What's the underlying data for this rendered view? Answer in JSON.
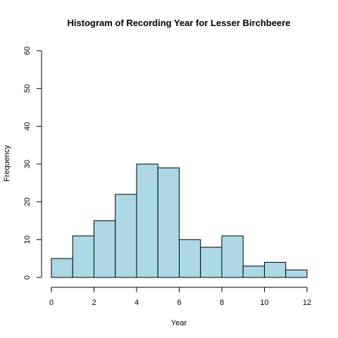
{
  "chart_data": {
    "type": "bar",
    "title": "Histogram of Recording Year for Lesser Birchbeere",
    "xlabel": "Year",
    "ylabel": "Frequency",
    "bin_edges": [
      0,
      1,
      2,
      3,
      4,
      5,
      6,
      7,
      8,
      9,
      10,
      11,
      12
    ],
    "values": [
      5,
      11,
      15,
      22,
      30,
      29,
      10,
      8,
      11,
      3,
      4,
      2
    ],
    "xlim": [
      0,
      12
    ],
    "ylim": [
      0,
      60
    ],
    "x_ticks": [
      0,
      2,
      4,
      6,
      8,
      10,
      12
    ],
    "y_ticks": [
      0,
      10,
      20,
      30,
      40,
      50,
      60
    ],
    "bar_color": "#add8e6",
    "edge_color": "#000000",
    "grid": false,
    "legend": "none"
  }
}
